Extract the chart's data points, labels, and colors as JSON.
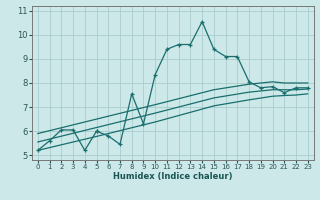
{
  "xlabel": "Humidex (Indice chaleur)",
  "bg_color": "#cce8e8",
  "grid_color": "#aacccc",
  "line_color": "#1a6e6e",
  "xlim": [
    -0.5,
    23.5
  ],
  "ylim": [
    4.8,
    11.2
  ],
  "xticks": [
    0,
    1,
    2,
    3,
    4,
    5,
    6,
    7,
    8,
    9,
    10,
    11,
    12,
    13,
    14,
    15,
    16,
    17,
    18,
    19,
    20,
    21,
    22,
    23
  ],
  "yticks": [
    5,
    6,
    7,
    8,
    9,
    10,
    11
  ],
  "main_x": [
    0,
    1,
    2,
    3,
    4,
    5,
    5,
    6,
    7,
    8,
    9,
    10,
    11,
    12,
    13,
    14,
    15,
    16,
    17,
    18,
    19,
    20,
    21,
    22,
    23
  ],
  "main_y": [
    5.2,
    5.6,
    6.05,
    6.05,
    5.2,
    6.0,
    6.0,
    5.8,
    5.45,
    7.55,
    6.3,
    8.35,
    9.4,
    9.6,
    9.6,
    10.55,
    9.4,
    9.1,
    9.1,
    8.05,
    7.8,
    7.85,
    7.6,
    7.8,
    7.8
  ],
  "line_top_x": [
    0,
    5,
    10,
    15,
    18,
    20,
    21,
    22,
    23
  ],
  "line_top_y": [
    5.9,
    6.5,
    7.1,
    7.72,
    7.95,
    8.05,
    8.0,
    8.0,
    8.0
  ],
  "line_mid_x": [
    0,
    5,
    10,
    15,
    18,
    20,
    21,
    22,
    23
  ],
  "line_mid_y": [
    5.55,
    6.15,
    6.75,
    7.38,
    7.62,
    7.72,
    7.72,
    7.72,
    7.75
  ],
  "line_bot_x": [
    0,
    5,
    10,
    15,
    18,
    20,
    21,
    22,
    23
  ],
  "line_bot_y": [
    5.2,
    5.78,
    6.38,
    7.05,
    7.3,
    7.45,
    7.48,
    7.5,
    7.55
  ]
}
